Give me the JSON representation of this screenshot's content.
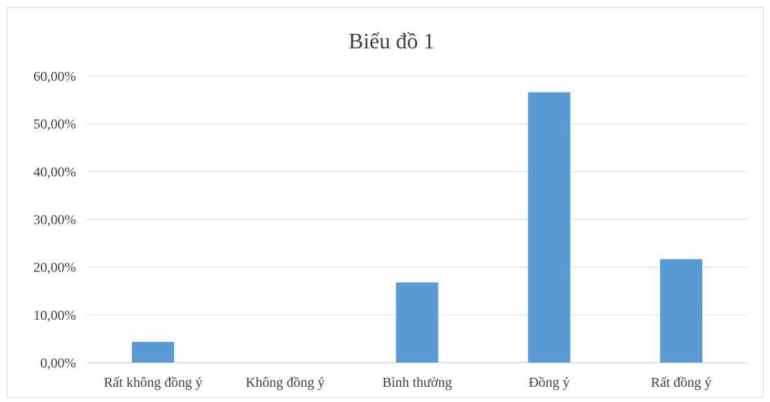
{
  "chart_data": {
    "type": "bar",
    "title": "Biểu đồ 1",
    "categories": [
      "Rất không đồng ý",
      "Không đồng ý",
      "Bình thường",
      "Đồng ý",
      "Rất đồng ý"
    ],
    "values": [
      0.0435,
      0.0,
      0.168,
      0.5659,
      0.2166
    ],
    "ylim": [
      0,
      0.6
    ],
    "yticks": [
      0,
      0.1,
      0.2,
      0.3,
      0.4,
      0.5,
      0.6
    ],
    "ytick_labels": [
      "0,00%",
      "10,00%",
      "20,00%",
      "30,00%",
      "40,00%",
      "50,00%",
      "60,00%"
    ],
    "xlabel": "",
    "ylabel": "",
    "grid": true,
    "legend": "none",
    "bar_color": "#5b9bd5",
    "grid_color": "#d9d9d9",
    "text_color": "#404040"
  }
}
